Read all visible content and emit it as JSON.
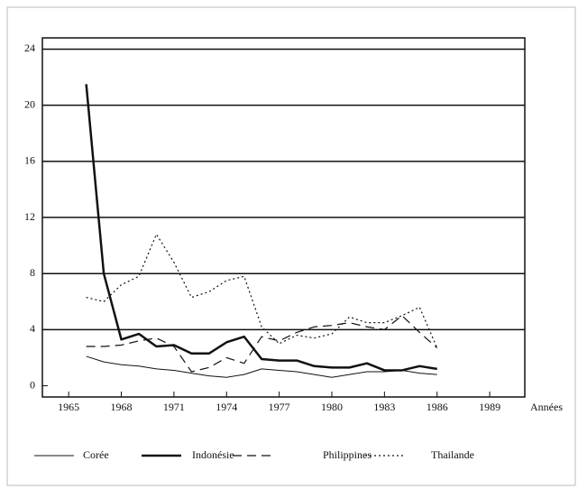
{
  "chart_data": {
    "type": "line",
    "x_label": "Années",
    "x": [
      1966,
      1967,
      1968,
      1969,
      1970,
      1971,
      1972,
      1973,
      1974,
      1975,
      1976,
      1977,
      1978,
      1979,
      1980,
      1981,
      1982,
      1983,
      1984,
      1985,
      1986
    ],
    "series": [
      {
        "name": "Corée",
        "color": "#111111",
        "line_style": "solid",
        "line_width": 1,
        "values": [
          2.1,
          1.7,
          1.5,
          1.4,
          1.2,
          1.1,
          0.9,
          0.7,
          0.6,
          0.8,
          1.2,
          1.1,
          1.0,
          0.8,
          0.6,
          0.8,
          1.0,
          1.0,
          1.1,
          0.9,
          0.8
        ]
      },
      {
        "name": "Indonésie",
        "color": "#111111",
        "line_style": "solid",
        "line_width": 2.5,
        "values": [
          21.5,
          8,
          3.3,
          3.7,
          2.8,
          2.9,
          2.3,
          2.3,
          3.1,
          3.5,
          1.9,
          1.8,
          1.8,
          1.4,
          1.3,
          1.3,
          1.6,
          1.1,
          1.1,
          1.4,
          1.2
        ]
      },
      {
        "name": "Philippines",
        "color": "#111111",
        "line_style": "dashed",
        "line_width": 1.2,
        "values": [
          2.8,
          2.8,
          2.9,
          3.2,
          3.4,
          2.8,
          1.0,
          1.3,
          2.0,
          1.6,
          3.5,
          3.2,
          3.8,
          4.2,
          4.3,
          4.5,
          4.2,
          4.0,
          5.0,
          3.8,
          2.7
        ]
      },
      {
        "name": "Thailande",
        "color": "#111111",
        "line_style": "dotted",
        "line_width": 1.2,
        "values": [
          6.3,
          6.0,
          7.2,
          7.8,
          10.8,
          8.8,
          6.3,
          6.7,
          7.5,
          7.8,
          4.2,
          3.0,
          3.6,
          3.4,
          3.7,
          4.9,
          4.5,
          4.5,
          5.0,
          5.6,
          2.7
        ]
      }
    ],
    "xlim": [
      1963.5,
      1991
    ],
    "xticks": [
      1965,
      1968,
      1971,
      1974,
      1977,
      1980,
      1983,
      1986,
      1989
    ],
    "ylim": [
      -0.8,
      24.8
    ],
    "yticks": [
      0,
      4,
      8,
      12,
      16,
      20,
      24
    ],
    "grid": true
  }
}
